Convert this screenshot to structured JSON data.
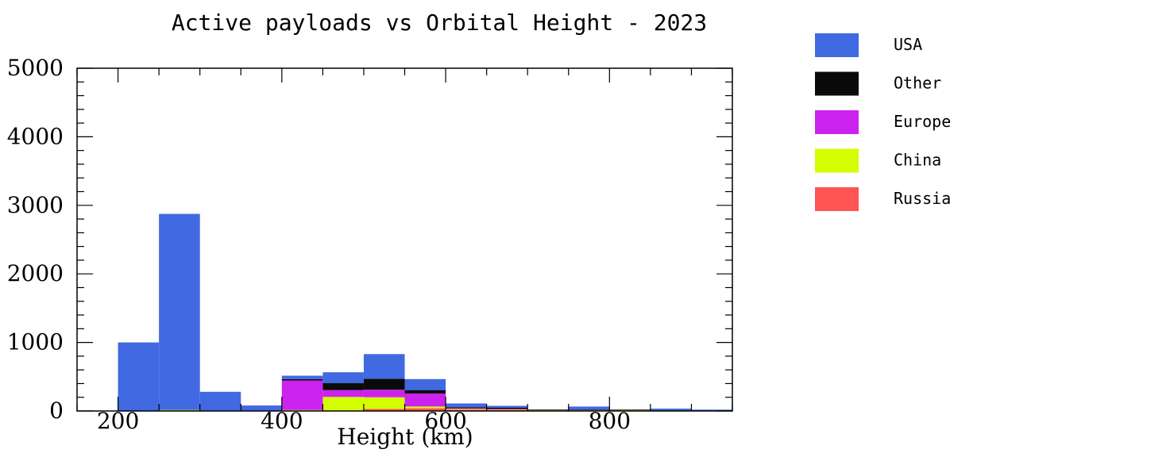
{
  "chart_data": {
    "type": "bar",
    "stacked": true,
    "title": "Active payloads vs Orbital Height - 2023",
    "xlabel": "Height (km)",
    "ylabel": "",
    "xlim": [
      150,
      950
    ],
    "ylim": [
      0,
      5000
    ],
    "x_ticks": [
      200,
      400,
      600,
      800
    ],
    "y_ticks": [
      0,
      1000,
      2000,
      3000,
      4000,
      5000
    ],
    "bin_edges": [
      150,
      200,
      250,
      300,
      350,
      400,
      450,
      500,
      550,
      600,
      650,
      700,
      750,
      800,
      850,
      900,
      950
    ],
    "legend_position": "right",
    "series": [
      {
        "name": "Russia",
        "color": "#ff5555",
        "values": [
          5,
          5,
          10,
          5,
          5,
          5,
          5,
          30,
          40,
          20,
          15,
          10,
          10,
          10,
          5,
          5
        ]
      },
      {
        "name": "China",
        "color": "#d4ff00",
        "values": [
          0,
          0,
          5,
          0,
          0,
          10,
          200,
          170,
          25,
          10,
          10,
          5,
          5,
          5,
          0,
          0
        ]
      },
      {
        "name": "Europe",
        "color": "#cc22ee",
        "values": [
          0,
          0,
          0,
          0,
          0,
          430,
          100,
          110,
          190,
          10,
          5,
          0,
          0,
          0,
          0,
          0
        ]
      },
      {
        "name": "Other",
        "color": "#0a0a0a",
        "values": [
          0,
          0,
          0,
          0,
          0,
          20,
          100,
          160,
          50,
          15,
          20,
          5,
          5,
          5,
          5,
          5
        ]
      },
      {
        "name": "USA",
        "color": "#4169e1",
        "values": [
          0,
          995,
          2860,
          275,
          75,
          50,
          160,
          360,
          160,
          55,
          25,
          0,
          45,
          0,
          25,
          10
        ]
      }
    ],
    "legend_order": [
      "USA",
      "Other",
      "Europe",
      "China",
      "Russia"
    ]
  }
}
